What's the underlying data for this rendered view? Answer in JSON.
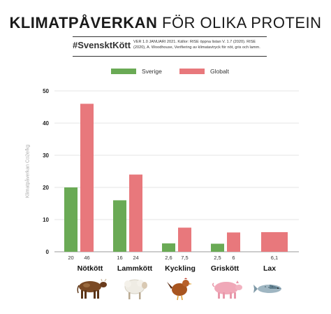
{
  "header": {
    "title_bold": "KLIMATPÅVERKAN",
    "title_light": "FÖR OLIKA PROTEIN",
    "hashtag": "#SvensktKött",
    "source": "VER 1.0 JANUARI 2021. Källor: RISE öppna listan V. 1.7 (2020). RISE (2020), A. Woodhouse, Verifiering av klimatavtryck för nöt, gris och lamm."
  },
  "colors": {
    "sverige": "#6aaa55",
    "globalt": "#e8787c"
  },
  "animals": [
    "cow-icon",
    "sheep-icon",
    "chicken-icon",
    "pig-icon",
    "fish-icon"
  ],
  "chart_data": {
    "type": "bar",
    "title": "",
    "ylabel": "Klimatpåverkan Co2e/kg",
    "xlabel": "",
    "ylim": [
      0,
      50
    ],
    "yticks": [
      "0",
      "10",
      "20",
      "30",
      "40",
      "50"
    ],
    "grid": true,
    "legend_position": "top",
    "categories": [
      "Nötkött",
      "Lammkött",
      "Kyckling",
      "Griskött",
      "Lax"
    ],
    "series": [
      {
        "name": "Sverige",
        "values": [
          20,
          16,
          2.6,
          2.5,
          null
        ],
        "labels": [
          "20",
          "16",
          "2,6",
          "2,5",
          ""
        ]
      },
      {
        "name": "Globalt",
        "values": [
          46,
          24,
          7.5,
          6,
          6.1
        ],
        "labels": [
          "46",
          "24",
          "7,5",
          "6",
          "6,1"
        ]
      }
    ]
  }
}
